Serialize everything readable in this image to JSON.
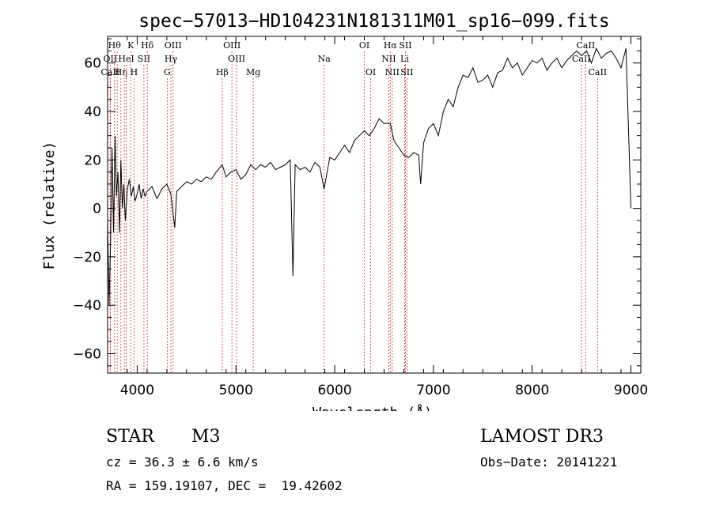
{
  "chart_data": {
    "type": "line",
    "title": "spec−57013−HD104231N181311M01_sp16−099.fits",
    "xlabel": "Wavelength (Å)",
    "ylabel": "Flux (relative)",
    "xlim": [
      3700,
      9100
    ],
    "ylim": [
      -68,
      71
    ],
    "xticks": [
      4000,
      5000,
      6000,
      7000,
      8000,
      9000
    ],
    "yticks": [
      -60,
      -40,
      -20,
      0,
      20,
      40,
      60
    ],
    "grid": false,
    "series": [
      {
        "name": "flux",
        "x": [
          3700,
          3715,
          3730,
          3745,
          3760,
          3775,
          3790,
          3805,
          3820,
          3835,
          3850,
          3865,
          3880,
          3900,
          3920,
          3940,
          3960,
          3980,
          4000,
          4020,
          4040,
          4060,
          4080,
          4100,
          4150,
          4200,
          4250,
          4300,
          4340,
          4380,
          4400,
          4450,
          4500,
          4550,
          4600,
          4650,
          4700,
          4750,
          4800,
          4861,
          4900,
          4950,
          5000,
          5050,
          5100,
          5150,
          5200,
          5250,
          5300,
          5350,
          5400,
          5450,
          5500,
          5550,
          5577,
          5600,
          5650,
          5700,
          5750,
          5800,
          5850,
          5893,
          5950,
          6000,
          6050,
          6100,
          6150,
          6200,
          6250,
          6300,
          6350,
          6400,
          6450,
          6500,
          6563,
          6600,
          6650,
          6700,
          6750,
          6800,
          6850,
          6870,
          6900,
          6950,
          7000,
          7050,
          7100,
          7150,
          7200,
          7250,
          7300,
          7350,
          7400,
          7450,
          7500,
          7550,
          7600,
          7650,
          7700,
          7750,
          7800,
          7850,
          7900,
          7950,
          8000,
          8050,
          8100,
          8150,
          8200,
          8250,
          8300,
          8350,
          8400,
          8450,
          8500,
          8550,
          8600,
          8650,
          8700,
          8750,
          8800,
          8850,
          8900,
          8950,
          9000
        ],
        "y": [
          -5,
          -40,
          -15,
          25,
          -10,
          30,
          5,
          15,
          -10,
          20,
          0,
          10,
          -5,
          8,
          12,
          5,
          9,
          3,
          6,
          10,
          4,
          8,
          5,
          7,
          9,
          4,
          8,
          10,
          6,
          -8,
          7,
          9,
          11,
          10,
          12,
          11,
          13,
          12,
          15,
          18,
          13,
          15,
          16,
          12,
          14,
          18,
          16,
          18,
          17,
          19,
          16,
          17,
          18,
          20,
          -28,
          18,
          16,
          17,
          15,
          19,
          17,
          8,
          21,
          20,
          23,
          26,
          23,
          28,
          30,
          32,
          30,
          33,
          37,
          35,
          35,
          28,
          25,
          22,
          21,
          23,
          22,
          10,
          27,
          33,
          35,
          30,
          40,
          45,
          42,
          50,
          55,
          54,
          58,
          52,
          53,
          55,
          50,
          56,
          57,
          62,
          58,
          60,
          55,
          58,
          61,
          60,
          62,
          57,
          60,
          62,
          58,
          61,
          63,
          65,
          63,
          65,
          60,
          66,
          62,
          64,
          65,
          62,
          58,
          66,
          0
        ],
        "color": "#000000"
      }
    ],
    "line_markers": [
      {
        "wavelength": 3770,
        "label": "Hθ",
        "row": 0
      },
      {
        "wavelength": 3727,
        "label": "OII",
        "row": 1
      },
      {
        "wavelength": 3726,
        "label": "CaII",
        "row": 2
      },
      {
        "wavelength": 3797,
        "label": "",
        "row": 0
      },
      {
        "wavelength": 3835,
        "label": "Hη",
        "row": 2
      },
      {
        "wavelength": 3869,
        "label": "",
        "row": 1
      },
      {
        "wavelength": 3889,
        "label": "HeI",
        "row": 1
      },
      {
        "wavelength": 3934,
        "label": "K",
        "row": 0
      },
      {
        "wavelength": 3968,
        "label": "H",
        "row": 2
      },
      {
        "wavelength": 4068,
        "label": "SII",
        "row": 1
      },
      {
        "wavelength": 4102,
        "label": "Hδ",
        "row": 0
      },
      {
        "wavelength": 4304,
        "label": "G",
        "row": 2
      },
      {
        "wavelength": 4341,
        "label": "Hγ",
        "row": 1
      },
      {
        "wavelength": 4363,
        "label": "OIII",
        "row": 0
      },
      {
        "wavelength": 4861,
        "label": "Hβ",
        "row": 2
      },
      {
        "wavelength": 4959,
        "label": "OIII",
        "row": 0
      },
      {
        "wavelength": 5007,
        "label": "OIII",
        "row": 1
      },
      {
        "wavelength": 5175,
        "label": "Mg",
        "row": 2
      },
      {
        "wavelength": 5893,
        "label": "Na",
        "row": 1
      },
      {
        "wavelength": 6300,
        "label": "OI",
        "row": 0
      },
      {
        "wavelength": 6364,
        "label": "OI",
        "row": 2
      },
      {
        "wavelength": 6548,
        "label": "NII",
        "row": 1
      },
      {
        "wavelength": 6563,
        "label": "Hα",
        "row": 0
      },
      {
        "wavelength": 6583,
        "label": "NII",
        "row": 2
      },
      {
        "wavelength": 6708,
        "label": "Li",
        "row": 1
      },
      {
        "wavelength": 6716,
        "label": "SII",
        "row": 0
      },
      {
        "wavelength": 6731,
        "label": "SII",
        "row": 2
      },
      {
        "wavelength": 8498,
        "label": "CaII",
        "row": 1
      },
      {
        "wavelength": 8542,
        "label": "CaII",
        "row": 0
      },
      {
        "wavelength": 8662,
        "label": "CaII",
        "row": 2
      }
    ]
  },
  "info": {
    "class": "STAR",
    "subclass": "M3",
    "survey": "LAMOST DR3",
    "cz_line": "cz = 36.3 ± 6.6 km/s",
    "obs_date_line": "Obs−Date: 20141221",
    "coords_line": "RA = 159.19107, DEC =  19.42602"
  },
  "colors": {
    "spectrum": "#000000",
    "marker": "#cc3333",
    "background": "#ffffff"
  }
}
